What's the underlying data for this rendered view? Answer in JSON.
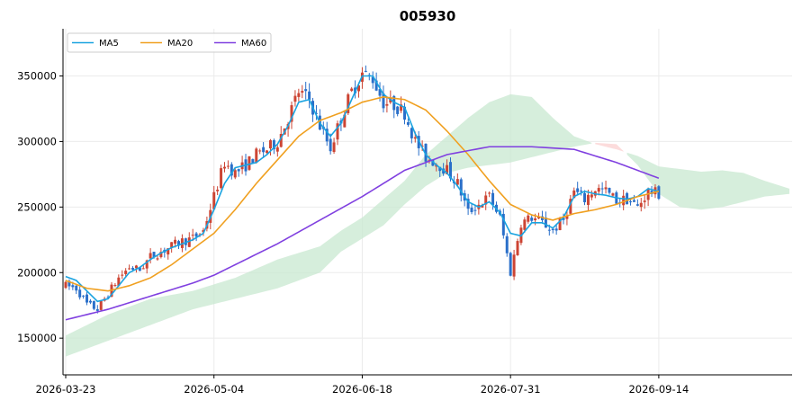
{
  "chart_data": {
    "type": "candlestick",
    "title": "005930",
    "xlabel": "",
    "ylabel": "",
    "ylim": [
      122000,
      386000
    ],
    "x_ticks": [
      "2026-03-23",
      "2026-05-04",
      "2026-06-18",
      "2026-07-31",
      "2026-09-14"
    ],
    "x_tick_index": [
      0,
      42,
      84,
      126,
      168
    ],
    "y_ticks": [
      150000,
      200000,
      250000,
      300000,
      350000
    ],
    "y_tick_labels": [
      "150000",
      "200000",
      "250000",
      "300000",
      "350000"
    ],
    "grid": true,
    "legend": {
      "placement": "top-left",
      "entries": [
        {
          "name": "MA5",
          "color": "#1aa3e0"
        },
        {
          "name": "MA20",
          "color": "#f0a020"
        },
        {
          "name": "MA60",
          "color": "#8040e0"
        }
      ]
    },
    "colors": {
      "up": "#cc4433",
      "down": "#2a6fc9",
      "cloud_bull": "#c8e8d0",
      "cloud_bear": "#fbd0d0"
    },
    "n_candles": 169,
    "cloud_span": [
      0,
      205
    ],
    "price_anchors": [
      [
        0,
        190000
      ],
      [
        3,
        188000
      ],
      [
        6,
        176000
      ],
      [
        9,
        172000
      ],
      [
        12,
        184000
      ],
      [
        15,
        196000
      ],
      [
        18,
        204000
      ],
      [
        21,
        202000
      ],
      [
        24,
        212000
      ],
      [
        27,
        216000
      ],
      [
        30,
        220000
      ],
      [
        33,
        224000
      ],
      [
        36,
        226000
      ],
      [
        39,
        232000
      ],
      [
        42,
        258000
      ],
      [
        45,
        284000
      ],
      [
        48,
        276000
      ],
      [
        51,
        282000
      ],
      [
        54,
        290000
      ],
      [
        57,
        294000
      ],
      [
        60,
        300000
      ],
      [
        63,
        318000
      ],
      [
        66,
        338000
      ],
      [
        69,
        332000
      ],
      [
        72,
        312000
      ],
      [
        75,
        295000
      ],
      [
        78,
        318000
      ],
      [
        81,
        338000
      ],
      [
        84,
        352000
      ],
      [
        87,
        348000
      ],
      [
        90,
        330000
      ],
      [
        93,
        328000
      ],
      [
        96,
        322000
      ],
      [
        99,
        300000
      ],
      [
        102,
        288000
      ],
      [
        105,
        284000
      ],
      [
        108,
        278000
      ],
      [
        111,
        268000
      ],
      [
        114,
        246000
      ],
      [
        117,
        252000
      ],
      [
        120,
        258000
      ],
      [
        123,
        242000
      ],
      [
        126,
        200000
      ],
      [
        129,
        238000
      ],
      [
        132,
        242000
      ],
      [
        135,
        238000
      ],
      [
        138,
        232000
      ],
      [
        141,
        240000
      ],
      [
        144,
        262000
      ],
      [
        147,
        256000
      ],
      [
        150,
        264000
      ],
      [
        153,
        262000
      ],
      [
        156,
        255000
      ],
      [
        159,
        256000
      ],
      [
        162,
        250000
      ],
      [
        165,
        262000
      ],
      [
        168,
        260000
      ]
    ],
    "ma5_anchors": [
      [
        0,
        197000
      ],
      [
        3,
        194000
      ],
      [
        6,
        186000
      ],
      [
        9,
        178000
      ],
      [
        12,
        180000
      ],
      [
        15,
        190000
      ],
      [
        18,
        200000
      ],
      [
        21,
        204000
      ],
      [
        24,
        210000
      ],
      [
        27,
        215000
      ],
      [
        30,
        219000
      ],
      [
        33,
        222000
      ],
      [
        36,
        225000
      ],
      [
        39,
        230000
      ],
      [
        42,
        248000
      ],
      [
        45,
        268000
      ],
      [
        48,
        280000
      ],
      [
        51,
        282000
      ],
      [
        54,
        284000
      ],
      [
        57,
        290000
      ],
      [
        60,
        298000
      ],
      [
        63,
        312000
      ],
      [
        66,
        330000
      ],
      [
        69,
        332000
      ],
      [
        72,
        314000
      ],
      [
        75,
        304000
      ],
      [
        78,
        314000
      ],
      [
        81,
        332000
      ],
      [
        84,
        350000
      ],
      [
        87,
        350000
      ],
      [
        90,
        336000
      ],
      [
        93,
        330000
      ],
      [
        96,
        326000
      ],
      [
        99,
        306000
      ],
      [
        102,
        290000
      ],
      [
        105,
        282000
      ],
      [
        108,
        276000
      ],
      [
        111,
        266000
      ],
      [
        114,
        254000
      ],
      [
        117,
        250000
      ],
      [
        120,
        254000
      ],
      [
        123,
        246000
      ],
      [
        126,
        230000
      ],
      [
        129,
        228000
      ],
      [
        132,
        238000
      ],
      [
        135,
        238000
      ],
      [
        138,
        234000
      ],
      [
        141,
        242000
      ],
      [
        144,
        258000
      ],
      [
        147,
        262000
      ],
      [
        150,
        260000
      ],
      [
        153,
        259000
      ],
      [
        156,
        257000
      ],
      [
        159,
        256000
      ],
      [
        162,
        258000
      ],
      [
        165,
        264000
      ],
      [
        168,
        262000
      ]
    ],
    "ma20_anchors": [
      [
        0,
        194000
      ],
      [
        6,
        188000
      ],
      [
        12,
        186000
      ],
      [
        18,
        190000
      ],
      [
        24,
        196000
      ],
      [
        30,
        206000
      ],
      [
        36,
        218000
      ],
      [
        42,
        230000
      ],
      [
        48,
        248000
      ],
      [
        54,
        268000
      ],
      [
        60,
        286000
      ],
      [
        66,
        304000
      ],
      [
        72,
        316000
      ],
      [
        78,
        322000
      ],
      [
        84,
        330000
      ],
      [
        90,
        334000
      ],
      [
        96,
        332000
      ],
      [
        102,
        324000
      ],
      [
        108,
        308000
      ],
      [
        114,
        290000
      ],
      [
        120,
        270000
      ],
      [
        126,
        252000
      ],
      [
        132,
        244000
      ],
      [
        138,
        240000
      ],
      [
        144,
        245000
      ],
      [
        150,
        248000
      ],
      [
        156,
        252000
      ],
      [
        162,
        258000
      ],
      [
        168,
        262000
      ]
    ],
    "ma60_anchors": [
      [
        0,
        164000
      ],
      [
        12,
        172000
      ],
      [
        24,
        182000
      ],
      [
        36,
        192000
      ],
      [
        42,
        198000
      ],
      [
        48,
        206000
      ],
      [
        60,
        222000
      ],
      [
        72,
        240000
      ],
      [
        84,
        258000
      ],
      [
        96,
        278000
      ],
      [
        108,
        290000
      ],
      [
        120,
        296000
      ],
      [
        132,
        296000
      ],
      [
        144,
        294000
      ],
      [
        156,
        284000
      ],
      [
        168,
        272000
      ]
    ],
    "cloud_top_anchors": [
      [
        0,
        152000
      ],
      [
        12,
        168000
      ],
      [
        24,
        180000
      ],
      [
        36,
        186000
      ],
      [
        48,
        196000
      ],
      [
        60,
        210000
      ],
      [
        72,
        220000
      ],
      [
        78,
        232000
      ],
      [
        84,
        242000
      ],
      [
        90,
        256000
      ],
      [
        96,
        270000
      ],
      [
        102,
        290000
      ],
      [
        108,
        304000
      ],
      [
        114,
        318000
      ],
      [
        120,
        330000
      ],
      [
        126,
        336000
      ],
      [
        132,
        334000
      ],
      [
        138,
        318000
      ],
      [
        144,
        304000
      ],
      [
        150,
        298000
      ],
      [
        156,
        294000
      ],
      [
        162,
        289000
      ],
      [
        168,
        281000
      ],
      [
        174,
        279000
      ],
      [
        180,
        277000
      ],
      [
        186,
        278000
      ],
      [
        192,
        276000
      ],
      [
        198,
        270000
      ],
      [
        205,
        264000
      ]
    ],
    "cloud_bottom_anchors": [
      [
        0,
        136000
      ],
      [
        12,
        148000
      ],
      [
        24,
        160000
      ],
      [
        36,
        172000
      ],
      [
        48,
        180000
      ],
      [
        60,
        188000
      ],
      [
        72,
        200000
      ],
      [
        78,
        216000
      ],
      [
        84,
        226000
      ],
      [
        90,
        236000
      ],
      [
        96,
        252000
      ],
      [
        102,
        266000
      ],
      [
        108,
        276000
      ],
      [
        114,
        280000
      ],
      [
        120,
        282000
      ],
      [
        126,
        284000
      ],
      [
        132,
        288000
      ],
      [
        138,
        292000
      ],
      [
        144,
        296000
      ],
      [
        150,
        299000
      ],
      [
        156,
        298000
      ],
      [
        162,
        282000
      ],
      [
        168,
        260000
      ],
      [
        174,
        250000
      ],
      [
        180,
        248000
      ],
      [
        186,
        250000
      ],
      [
        192,
        254000
      ],
      [
        198,
        258000
      ],
      [
        205,
        260000
      ]
    ]
  }
}
